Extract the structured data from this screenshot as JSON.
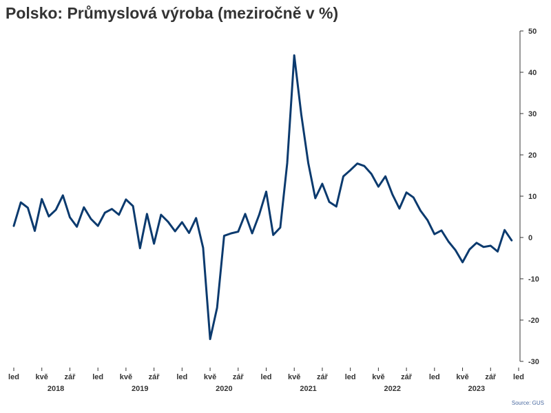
{
  "title": "Polsko: Průmyslová výroba (meziročně v %)",
  "source": "Source: GUS",
  "colors": {
    "line": "#0b3a6e",
    "text": "#333333",
    "axis": "#333333"
  },
  "chart_data": {
    "type": "line",
    "title": "Polsko: Průmyslová výroba (meziročně v %)",
    "xlabel": "",
    "ylabel": "",
    "ylim": [
      -30,
      50
    ],
    "y_ticks": [
      -30,
      -20,
      -10,
      0,
      10,
      20,
      30,
      40,
      50
    ],
    "y_axis_side": "right",
    "grid": false,
    "x_start": "2018-01",
    "x_end": "2024-01",
    "month_ticks": [
      {
        "month": "2018-01",
        "label": "led"
      },
      {
        "month": "2018-05",
        "label": "kvě"
      },
      {
        "month": "2018-09",
        "label": "zář"
      },
      {
        "month": "2019-01",
        "label": "led"
      },
      {
        "month": "2019-05",
        "label": "kvě"
      },
      {
        "month": "2019-09",
        "label": "zář"
      },
      {
        "month": "2020-01",
        "label": "led"
      },
      {
        "month": "2020-05",
        "label": "kvě"
      },
      {
        "month": "2020-09",
        "label": "zář"
      },
      {
        "month": "2021-01",
        "label": "led"
      },
      {
        "month": "2021-05",
        "label": "kvě"
      },
      {
        "month": "2021-09",
        "label": "zář"
      },
      {
        "month": "2022-01",
        "label": "led"
      },
      {
        "month": "2022-05",
        "label": "kvě"
      },
      {
        "month": "2022-09",
        "label": "zář"
      },
      {
        "month": "2023-01",
        "label": "led"
      },
      {
        "month": "2023-05",
        "label": "kvě"
      },
      {
        "month": "2023-09",
        "label": "zář"
      },
      {
        "month": "2024-01",
        "label": "led"
      }
    ],
    "year_labels": [
      "2018",
      "2019",
      "2020",
      "2021",
      "2022",
      "2023"
    ],
    "series": [
      {
        "values": [
          {
            "x": "2018-01",
            "y": 2.8
          },
          {
            "x": "2018-02",
            "y": 8.5
          },
          {
            "x": "2018-03",
            "y": 7.2
          },
          {
            "x": "2018-04",
            "y": 1.6
          },
          {
            "x": "2018-05",
            "y": 9.3
          },
          {
            "x": "2018-06",
            "y": 5.1
          },
          {
            "x": "2018-07",
            "y": 6.7
          },
          {
            "x": "2018-08",
            "y": 10.2
          },
          {
            "x": "2018-09",
            "y": 4.9
          },
          {
            "x": "2018-10",
            "y": 2.6
          },
          {
            "x": "2018-11",
            "y": 7.3
          },
          {
            "x": "2018-12",
            "y": 4.5
          },
          {
            "x": "2019-01",
            "y": 2.8
          },
          {
            "x": "2019-02",
            "y": 6.0
          },
          {
            "x": "2019-03",
            "y": 6.9
          },
          {
            "x": "2019-04",
            "y": 5.5
          },
          {
            "x": "2019-05",
            "y": 9.2
          },
          {
            "x": "2019-06",
            "y": 7.6
          },
          {
            "x": "2019-07",
            "y": -2.6
          },
          {
            "x": "2019-08",
            "y": 5.7
          },
          {
            "x": "2019-09",
            "y": -1.5
          },
          {
            "x": "2019-10",
            "y": 5.5
          },
          {
            "x": "2019-11",
            "y": 3.8
          },
          {
            "x": "2019-12",
            "y": 1.5
          },
          {
            "x": "2020-01",
            "y": 3.7
          },
          {
            "x": "2020-02",
            "y": 1.1
          },
          {
            "x": "2020-03",
            "y": 4.7
          },
          {
            "x": "2020-04",
            "y": -2.5
          },
          {
            "x": "2020-05",
            "y": -24.6
          },
          {
            "x": "2020-06",
            "y": -17.0
          },
          {
            "x": "2020-07",
            "y": 0.4
          },
          {
            "x": "2020-08",
            "y": 1.0
          },
          {
            "x": "2020-09",
            "y": 1.4
          },
          {
            "x": "2020-10",
            "y": 5.7
          },
          {
            "x": "2020-11",
            "y": 1.0
          },
          {
            "x": "2020-12",
            "y": 5.5
          },
          {
            "x": "2021-01",
            "y": 11.1
          },
          {
            "x": "2021-02",
            "y": 0.6
          },
          {
            "x": "2021-03",
            "y": 2.4
          },
          {
            "x": "2021-04",
            "y": 18.0
          },
          {
            "x": "2021-05",
            "y": 44.1
          },
          {
            "x": "2021-06",
            "y": 29.8
          },
          {
            "x": "2021-07",
            "y": 18.0
          },
          {
            "x": "2021-08",
            "y": 9.5
          },
          {
            "x": "2021-09",
            "y": 13.0
          },
          {
            "x": "2021-10",
            "y": 8.6
          },
          {
            "x": "2021-11",
            "y": 7.5
          },
          {
            "x": "2021-12",
            "y": 14.8
          },
          {
            "x": "2022-01",
            "y": 16.3
          },
          {
            "x": "2022-02",
            "y": 17.9
          },
          {
            "x": "2022-03",
            "y": 17.3
          },
          {
            "x": "2022-04",
            "y": 15.4
          },
          {
            "x": "2022-05",
            "y": 12.3
          },
          {
            "x": "2022-06",
            "y": 14.8
          },
          {
            "x": "2022-07",
            "y": 10.4
          },
          {
            "x": "2022-08",
            "y": 7.0
          },
          {
            "x": "2022-09",
            "y": 10.9
          },
          {
            "x": "2022-10",
            "y": 9.7
          },
          {
            "x": "2022-11",
            "y": 6.5
          },
          {
            "x": "2022-12",
            "y": 4.2
          },
          {
            "x": "2023-01",
            "y": 0.8
          },
          {
            "x": "2023-02",
            "y": 1.7
          },
          {
            "x": "2023-03",
            "y": -1.0
          },
          {
            "x": "2023-04",
            "y": -3.1
          },
          {
            "x": "2023-05",
            "y": -6.0
          },
          {
            "x": "2023-06",
            "y": -2.9
          },
          {
            "x": "2023-07",
            "y": -1.3
          },
          {
            "x": "2023-08",
            "y": -2.3
          },
          {
            "x": "2023-09",
            "y": -2.0
          },
          {
            "x": "2023-10",
            "y": -3.4
          },
          {
            "x": "2023-11",
            "y": 1.8
          },
          {
            "x": "2023-12",
            "y": -0.7
          }
        ]
      }
    ]
  }
}
